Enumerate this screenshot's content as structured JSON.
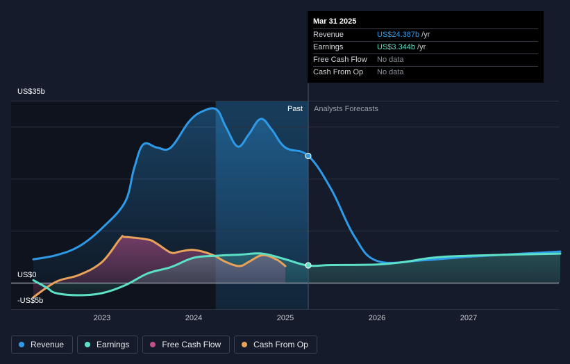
{
  "chart_data": {
    "type": "line",
    "x_axis": {
      "ticks": [
        2023,
        2024,
        2025,
        2026,
        2027
      ],
      "tick_labels": [
        "2023",
        "2024",
        "2025",
        "2026",
        "2027"
      ],
      "range": [
        2022.22,
        2028.0
      ]
    },
    "y_axis": {
      "range": [
        -5,
        35
      ],
      "labels": [
        {
          "value": 35,
          "text": "US$35b"
        },
        {
          "value": 0,
          "text": "US$0"
        },
        {
          "value": -5,
          "text": "-US$5b"
        }
      ],
      "gridlines": [
        35,
        30,
        20,
        10,
        0
      ]
    },
    "past_label": "Past",
    "forecast_label": "Analysts Forecasts",
    "past_end_x": 2025.25,
    "highlight_start_x": 2024.24,
    "series": [
      {
        "name": "Revenue",
        "color": "#2f9ae8",
        "points": [
          [
            2022.25,
            4.5
          ],
          [
            2022.5,
            5.3
          ],
          [
            2022.75,
            7.0
          ],
          [
            2023.0,
            10.5
          ],
          [
            2023.25,
            15.5
          ],
          [
            2023.35,
            22.0
          ],
          [
            2023.45,
            26.6
          ],
          [
            2023.6,
            26.0
          ],
          [
            2023.75,
            26.0
          ],
          [
            2023.95,
            31.0
          ],
          [
            2024.1,
            33.0
          ],
          [
            2024.25,
            33.3
          ],
          [
            2024.35,
            30.0
          ],
          [
            2024.48,
            26.2
          ],
          [
            2024.6,
            28.5
          ],
          [
            2024.73,
            31.5
          ],
          [
            2024.85,
            29.5
          ],
          [
            2025.0,
            26.0
          ],
          [
            2025.25,
            24.4
          ],
          [
            2025.5,
            18.0
          ],
          [
            2025.75,
            9.0
          ],
          [
            2026.0,
            4.2
          ],
          [
            2026.5,
            4.3
          ],
          [
            2027.0,
            5.0
          ],
          [
            2028.0,
            6.0
          ]
        ]
      },
      {
        "name": "Earnings",
        "color": "#5ce0c6",
        "points": [
          [
            2022.25,
            0.5
          ],
          [
            2022.4,
            -1.0
          ],
          [
            2022.5,
            -2.0
          ],
          [
            2022.75,
            -2.4
          ],
          [
            2023.0,
            -2.0
          ],
          [
            2023.25,
            -0.5
          ],
          [
            2023.5,
            1.8
          ],
          [
            2023.75,
            3.0
          ],
          [
            2024.0,
            4.8
          ],
          [
            2024.25,
            5.2
          ],
          [
            2024.5,
            5.4
          ],
          [
            2024.75,
            5.6
          ],
          [
            2025.0,
            4.5
          ],
          [
            2025.25,
            3.3
          ],
          [
            2025.5,
            3.4
          ],
          [
            2026.0,
            3.5
          ],
          [
            2026.3,
            4.0
          ],
          [
            2026.6,
            4.8
          ],
          [
            2027.0,
            5.2
          ],
          [
            2028.0,
            5.6
          ]
        ]
      },
      {
        "name": "Free Cash Flow",
        "color": "#c0508a",
        "points": []
      },
      {
        "name": "Cash From Op",
        "color": "#e8a25a",
        "points": [
          [
            2022.25,
            -2.8
          ],
          [
            2022.5,
            0.2
          ],
          [
            2022.75,
            1.5
          ],
          [
            2023.0,
            4.0
          ],
          [
            2023.2,
            8.5
          ],
          [
            2023.25,
            8.8
          ],
          [
            2023.5,
            8.3
          ],
          [
            2023.6,
            7.5
          ],
          [
            2023.75,
            5.8
          ],
          [
            2023.85,
            6.0
          ],
          [
            2024.0,
            6.3
          ],
          [
            2024.2,
            5.4
          ],
          [
            2024.35,
            4.0
          ],
          [
            2024.5,
            3.2
          ],
          [
            2024.6,
            4.0
          ],
          [
            2024.75,
            5.3
          ],
          [
            2024.9,
            4.5
          ],
          [
            2025.0,
            3.2
          ]
        ]
      }
    ],
    "marker_points": [
      {
        "series": "Revenue",
        "x": 2025.25,
        "y": 24.387
      },
      {
        "series": "Earnings",
        "x": 2025.25,
        "y": 3.344
      }
    ]
  },
  "tooltip": {
    "date": "Mar 31 2025",
    "rows": [
      {
        "label": "Revenue",
        "value": "US$24.387b",
        "unit": "/yr",
        "color": "#2f9ae8"
      },
      {
        "label": "Earnings",
        "value": "US$3.344b",
        "unit": "/yr",
        "color": "#5ce0c6"
      },
      {
        "label": "Free Cash Flow",
        "value": "No data",
        "unit": "",
        "color": "#8a8f98"
      },
      {
        "label": "Cash From Op",
        "value": "No data",
        "unit": "",
        "color": "#8a8f98"
      }
    ]
  },
  "legend": [
    {
      "label": "Revenue",
      "color": "#2f9ae8"
    },
    {
      "label": "Earnings",
      "color": "#5ce0c6"
    },
    {
      "label": "Free Cash Flow",
      "color": "#c0508a"
    },
    {
      "label": "Cash From Op",
      "color": "#e8a25a"
    }
  ]
}
